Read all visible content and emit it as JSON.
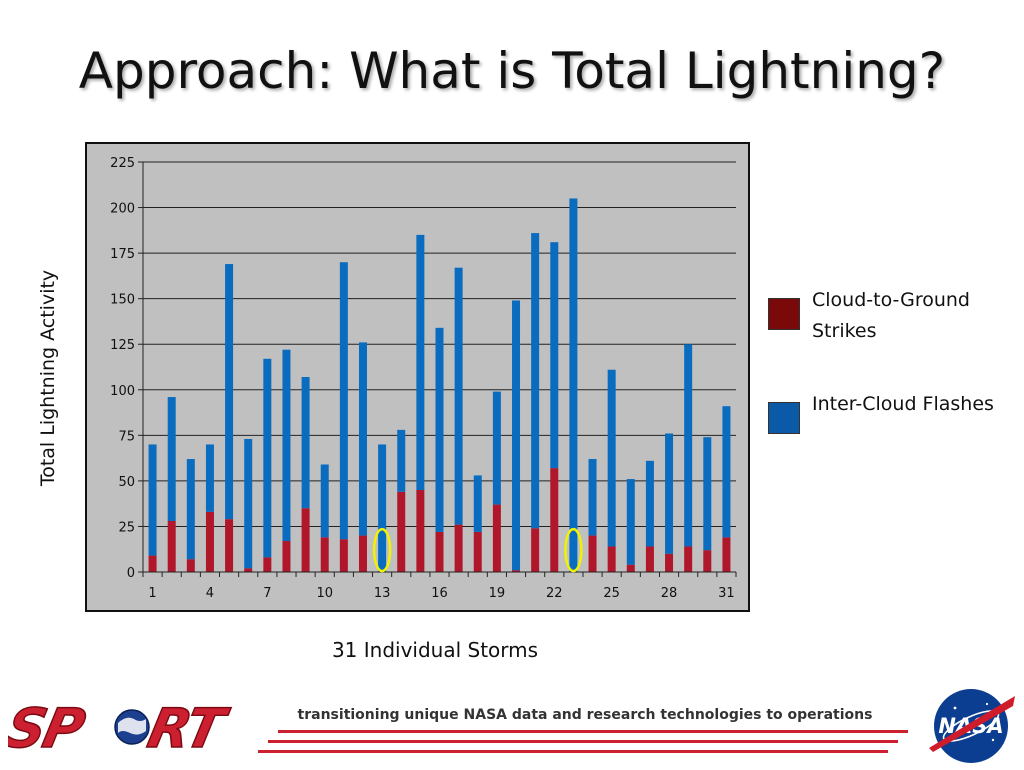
{
  "slide": {
    "title": "Approach: What is Total Lightning?",
    "footer_tagline": "transitioning unique NASA data and research technologies to operations",
    "logo_left": "SPoRT",
    "logo_right": "NASA"
  },
  "colors": {
    "plot_bg": "#c0c0c0",
    "cloud_to_ground": "#b0172a",
    "inter_cloud": "#0a6cbf",
    "legend_cg": "#7a0a0a",
    "legend_ic": "#0a5aa8",
    "highlight": "#f2f200",
    "footer_red": "#cc1f2f"
  },
  "chart_data": {
    "type": "bar",
    "stacked": true,
    "title": "",
    "xlabel": "31 Individual Storms",
    "ylabel": "Total Lightning Activity",
    "ylim": [
      0,
      225
    ],
    "yticks": [
      0,
      25,
      50,
      75,
      100,
      125,
      150,
      175,
      200,
      225
    ],
    "xtick_labels": [
      "1",
      "4",
      "7",
      "10",
      "13",
      "16",
      "19",
      "22",
      "25",
      "28",
      "31"
    ],
    "grid": "horizontal",
    "legend_position": "right",
    "categories": [
      1,
      2,
      3,
      4,
      5,
      6,
      7,
      8,
      9,
      10,
      11,
      12,
      13,
      14,
      15,
      16,
      17,
      18,
      19,
      20,
      21,
      22,
      23,
      24,
      25,
      26,
      27,
      28,
      29,
      30,
      31
    ],
    "series": [
      {
        "name": "Cloud-to-Ground Strikes",
        "values": [
          9,
          28,
          7,
          33,
          29,
          2,
          8,
          17,
          35,
          19,
          18,
          20,
          0,
          44,
          45,
          22,
          26,
          22,
          37,
          1,
          24,
          57,
          0,
          20,
          14,
          4,
          14,
          10,
          14,
          12,
          19
        ]
      },
      {
        "name": "Inter-Cloud Flashes",
        "values": [
          61,
          68,
          55,
          37,
          140,
          71,
          109,
          105,
          72,
          40,
          152,
          106,
          70,
          34,
          140,
          112,
          141,
          31,
          62,
          148,
          162,
          124,
          205,
          42,
          97,
          47,
          47,
          66,
          111,
          62,
          72
        ]
      }
    ],
    "highlighted_storms": [
      13,
      23
    ]
  }
}
